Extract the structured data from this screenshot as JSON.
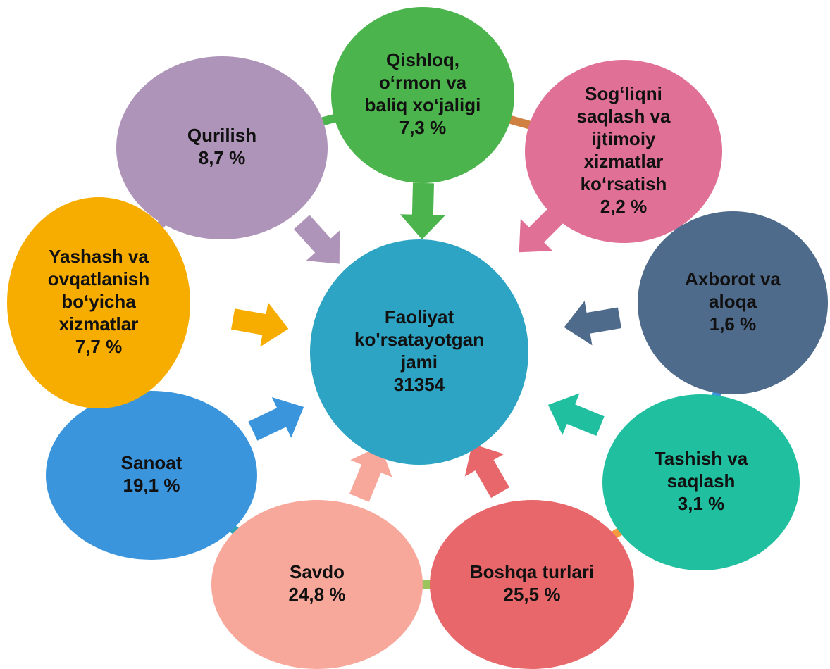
{
  "center": {
    "lines": [
      "Faoliyat",
      "ko'rsatayotgan",
      "jami",
      "31354"
    ]
  },
  "nodes": [
    {
      "lines": [
        "Qishloq,",
        "o‘rmon va",
        "baliq xo‘jaligi",
        "7,3 %"
      ]
    },
    {
      "lines": [
        "Sog‘liqni",
        "saqlash va",
        "ijtimoiy",
        "xizmatlar",
        "ko‘rsatish",
        "2,2 %"
      ]
    },
    {
      "lines": [
        "Axborot va",
        "aloqa",
        "1,6 %"
      ]
    },
    {
      "lines": [
        "Tashish va",
        "saqlash",
        "3,1 %"
      ]
    },
    {
      "lines": [
        "Boshqa turlari",
        "25,5 %"
      ]
    },
    {
      "lines": [
        "Savdo",
        "24,8 %"
      ]
    },
    {
      "lines": [
        "Sanoat",
        "19,1 %"
      ]
    },
    {
      "lines": [
        "Yashash va",
        "ovqatlanish",
        "bo‘yicha",
        "xizmatlar",
        "7,7 %"
      ]
    },
    {
      "lines": [
        "Qurilish",
        "8,7 %"
      ]
    }
  ]
}
